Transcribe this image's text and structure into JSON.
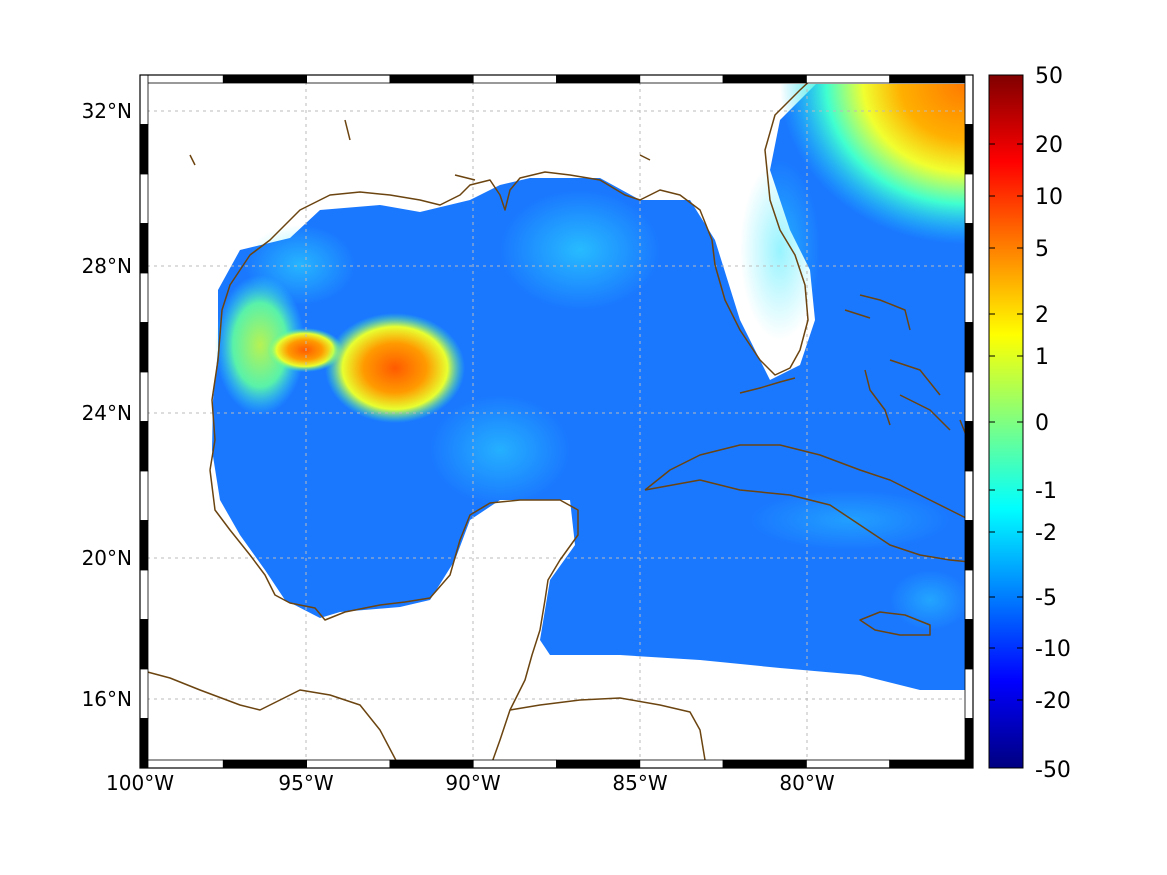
{
  "map": {
    "lon_ticks": [
      "100°W",
      "95°W",
      "90°W",
      "85°W",
      "80°W"
    ],
    "lat_ticks": [
      "32°N",
      "28°N",
      "24°N",
      "20°N",
      "16°N"
    ],
    "colors": {
      "coastline": "#6b4410",
      "grid": "#bbbbbb",
      "frame_dark": "#000000",
      "frame_light": "#ffffff"
    }
  },
  "colorbar": {
    "labels": [
      "50",
      "20",
      "10",
      "5",
      "2",
      "1",
      "0",
      "-1",
      "-2",
      "-5",
      "-10",
      "-20",
      "-50"
    ],
    "colors": [
      "#800000",
      "#ff0000",
      "#ff8000",
      "#ffff00",
      "#80ff80",
      "#00ffff",
      "#0080ff",
      "#0000ff",
      "#000080"
    ]
  }
}
